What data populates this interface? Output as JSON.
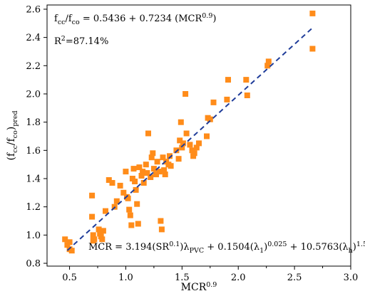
{
  "chart_data": {
    "type": "scatter",
    "xlabel": "MCR",
    "xlabel_sup": "0.9",
    "ylabel_parts": [
      "(f",
      "cc",
      "/f",
      "co",
      ")",
      "pred"
    ],
    "xlim": [
      0.3,
      3.0
    ],
    "ylim": [
      0.78,
      2.63
    ],
    "x_ticks": [
      0.5,
      1.0,
      1.5,
      2.0,
      2.5,
      3.0
    ],
    "y_ticks": [
      0.8,
      1.0,
      1.2,
      1.4,
      1.6,
      1.8,
      2.0,
      2.2,
      2.4,
      2.6
    ],
    "x_tick_labels": [
      "0.5",
      "1.0",
      "1.5",
      "2.0",
      "2.5",
      "3.0"
    ],
    "y_tick_labels": [
      "0.8",
      "1.0",
      "1.2",
      "1.4",
      "1.6",
      "1.8",
      "2.0",
      "2.2",
      "2.4",
      "2.6"
    ],
    "grid": false,
    "marker_color": "#ff8c1a",
    "fit_line_color": "#1f3c99",
    "fit": {
      "intercept": 0.5436,
      "slope": 0.7234,
      "x_range": [
        0.48,
        2.66
      ]
    },
    "annotations": {
      "eq_parts": [
        "f",
        "cc",
        "/f",
        "co",
        " = 0.5436 + 0.7234 (MCR",
        "0.9",
        ")"
      ],
      "r2_parts": [
        "R",
        "2",
        "=87.14%"
      ],
      "mcr_parts": [
        "MCR = 3.194(SR",
        "0.1",
        ")λ",
        "PVC",
        " + 0.1504(λ",
        "1",
        ")",
        "0.025",
        " + 10.5763(λ",
        "h",
        ")",
        "1.5"
      ]
    },
    "points": [
      [
        0.46,
        0.97
      ],
      [
        0.48,
        0.93
      ],
      [
        0.5,
        0.95
      ],
      [
        0.5,
        0.9
      ],
      [
        0.52,
        0.89
      ],
      [
        0.7,
        1.28
      ],
      [
        0.7,
        1.13
      ],
      [
        0.71,
        1.0
      ],
      [
        0.71,
        0.96
      ],
      [
        0.72,
        0.97
      ],
      [
        0.76,
        1.04
      ],
      [
        0.77,
        1.01
      ],
      [
        0.78,
        0.99
      ],
      [
        0.79,
        0.97
      ],
      [
        0.8,
        1.03
      ],
      [
        0.82,
        1.17
      ],
      [
        0.85,
        1.39
      ],
      [
        0.88,
        1.37
      ],
      [
        0.9,
        1.2
      ],
      [
        0.92,
        1.24
      ],
      [
        0.95,
        1.35
      ],
      [
        0.98,
        1.3
      ],
      [
        1.0,
        1.45
      ],
      [
        1.01,
        1.27
      ],
      [
        1.02,
        1.26
      ],
      [
        1.03,
        1.18
      ],
      [
        1.04,
        1.14
      ],
      [
        1.05,
        1.07
      ],
      [
        1.06,
        1.4
      ],
      [
        1.07,
        1.47
      ],
      [
        1.08,
        1.38
      ],
      [
        1.09,
        1.32
      ],
      [
        1.1,
        1.22
      ],
      [
        1.11,
        1.08
      ],
      [
        1.12,
        1.48
      ],
      [
        1.14,
        1.42
      ],
      [
        1.15,
        1.45
      ],
      [
        1.16,
        1.37
      ],
      [
        1.18,
        1.5
      ],
      [
        1.19,
        1.44
      ],
      [
        1.2,
        1.72
      ],
      [
        1.22,
        1.41
      ],
      [
        1.23,
        1.55
      ],
      [
        1.24,
        1.58
      ],
      [
        1.25,
        1.47
      ],
      [
        1.27,
        1.43
      ],
      [
        1.28,
        1.52
      ],
      [
        1.3,
        1.45
      ],
      [
        1.31,
        1.1
      ],
      [
        1.32,
        1.04
      ],
      [
        1.33,
        1.55
      ],
      [
        1.34,
        1.46
      ],
      [
        1.35,
        1.43
      ],
      [
        1.36,
        1.52
      ],
      [
        1.38,
        1.5
      ],
      [
        1.39,
        1.56
      ],
      [
        1.4,
        1.49
      ],
      [
        1.45,
        1.6
      ],
      [
        1.47,
        1.54
      ],
      [
        1.48,
        1.67
      ],
      [
        1.49,
        1.8
      ],
      [
        1.5,
        1.62
      ],
      [
        1.51,
        1.65
      ],
      [
        1.53,
        2.0
      ],
      [
        1.54,
        1.72
      ],
      [
        1.57,
        1.64
      ],
      [
        1.59,
        1.6
      ],
      [
        1.6,
        1.56
      ],
      [
        1.61,
        1.58
      ],
      [
        1.63,
        1.62
      ],
      [
        1.65,
        1.65
      ],
      [
        1.72,
        1.7
      ],
      [
        1.73,
        1.83
      ],
      [
        1.75,
        1.82
      ],
      [
        1.78,
        1.94
      ],
      [
        1.9,
        1.96
      ],
      [
        1.91,
        2.1
      ],
      [
        2.07,
        2.1
      ],
      [
        2.08,
        1.99
      ],
      [
        2.26,
        2.2
      ],
      [
        2.27,
        2.23
      ],
      [
        2.66,
        2.57
      ],
      [
        2.66,
        2.32
      ]
    ]
  }
}
